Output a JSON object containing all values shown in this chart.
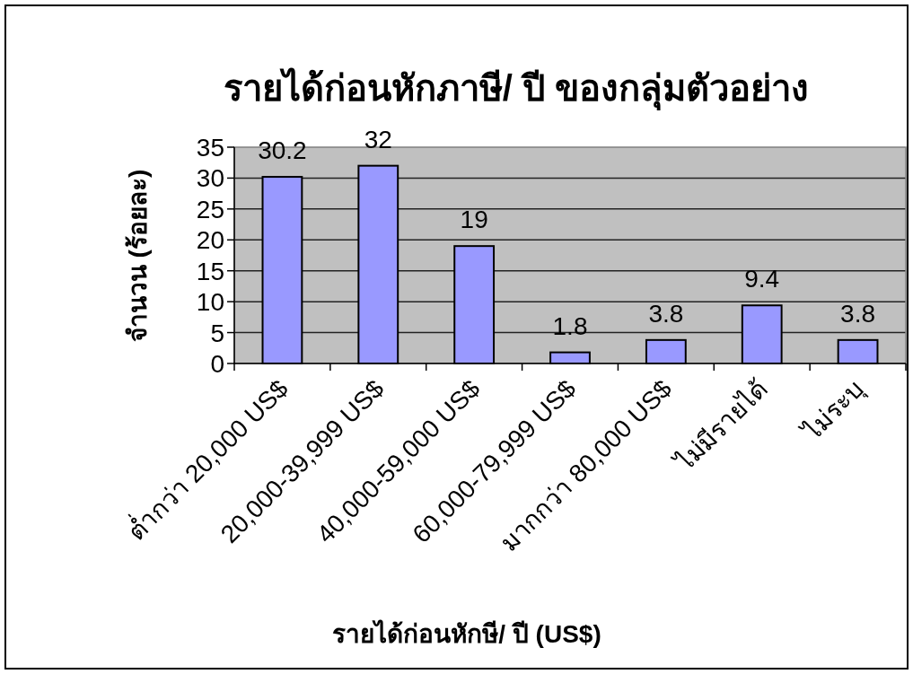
{
  "chart_data": {
    "type": "bar",
    "title": "รายได้ก่อนหักภาษี/ ปี ของกลุ่มตัวอย่าง",
    "xlabel": "รายได้ก่อนหักษี/ ปี (US$)",
    "ylabel": "จำนวน (ร้อยละ)",
    "categories": [
      "ต่ำกว่า 20,000 US$",
      "20,000-39,999 US$",
      "40,000-59,000 US$",
      "60,000-79,999 US$",
      "มากกว่า 80,000 US$",
      "ไม่มีรายได้",
      "ไม่ระบุ"
    ],
    "values": [
      30.2,
      32,
      19,
      1.8,
      3.8,
      9.4,
      3.8
    ],
    "color": "#9999ff",
    "ylim": [
      0,
      35
    ],
    "yticks": [
      0,
      5,
      10,
      15,
      20,
      25,
      30,
      35
    ],
    "grid": "y",
    "data_labels": true
  }
}
